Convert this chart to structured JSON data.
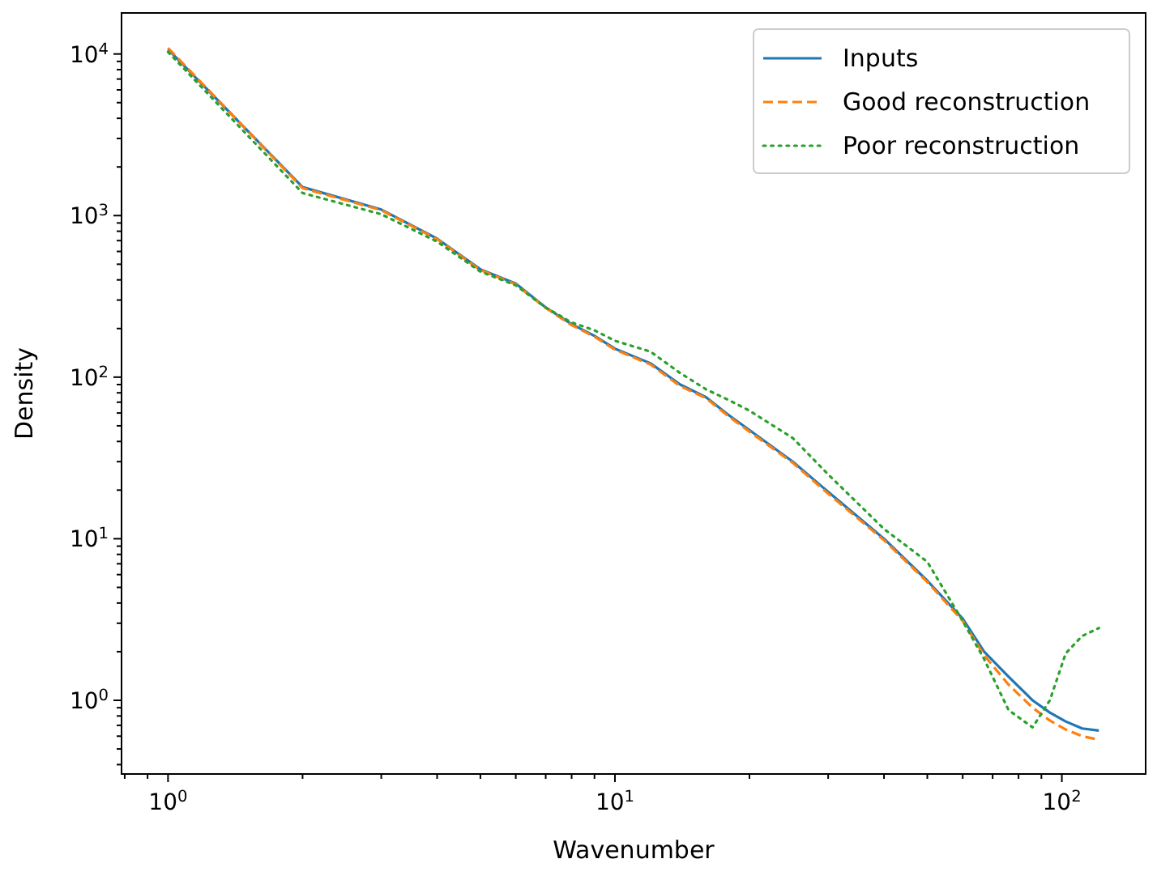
{
  "chart_data": {
    "type": "line",
    "xlabel": "Wavenumber",
    "ylabel": "Density",
    "log": "xy",
    "grid": false,
    "legend": "top right",
    "xlim": [
      0.787,
      154
    ],
    "ylim": [
      0.35,
      17950
    ],
    "xticks": [
      {
        "value": 0.8,
        "label": null
      },
      {
        "value": 0.9,
        "label": null
      },
      {
        "value": 1,
        "label": "10$^{0}$"
      },
      {
        "value": 2,
        "label": null
      },
      {
        "value": 3,
        "label": null
      },
      {
        "value": 4,
        "label": null
      },
      {
        "value": 5,
        "label": null
      },
      {
        "value": 6,
        "label": null
      },
      {
        "value": 7,
        "label": null
      },
      {
        "value": 8,
        "label": null
      },
      {
        "value": 9,
        "label": null
      },
      {
        "value": 10,
        "label": "10$^{1}$"
      },
      {
        "value": 20,
        "label": null
      },
      {
        "value": 30,
        "label": null
      },
      {
        "value": 40,
        "label": null
      },
      {
        "value": 50,
        "label": null
      },
      {
        "value": 60,
        "label": null
      },
      {
        "value": 70,
        "label": null
      },
      {
        "value": 80,
        "label": null
      },
      {
        "value": 90,
        "label": null
      },
      {
        "value": 100,
        "label": "10$^{2}$"
      }
    ],
    "yticks": [
      {
        "value": 0.4,
        "label": null
      },
      {
        "value": 0.5,
        "label": null
      },
      {
        "value": 0.6,
        "label": null
      },
      {
        "value": 0.7,
        "label": null
      },
      {
        "value": 0.8,
        "label": null
      },
      {
        "value": 0.9,
        "label": null
      },
      {
        "value": 1,
        "label": "10$^{0}$"
      },
      {
        "value": 2,
        "label": null
      },
      {
        "value": 3,
        "label": null
      },
      {
        "value": 4,
        "label": null
      },
      {
        "value": 5,
        "label": null
      },
      {
        "value": 6,
        "label": null
      },
      {
        "value": 7,
        "label": null
      },
      {
        "value": 8,
        "label": null
      },
      {
        "value": 9,
        "label": null
      },
      {
        "value": 10,
        "label": "10$^{1}$"
      },
      {
        "value": 20,
        "label": null
      },
      {
        "value": 30,
        "label": null
      },
      {
        "value": 40,
        "label": null
      },
      {
        "value": 50,
        "label": null
      },
      {
        "value": 60,
        "label": null
      },
      {
        "value": 70,
        "label": null
      },
      {
        "value": 80,
        "label": null
      },
      {
        "value": 90,
        "label": null
      },
      {
        "value": 100,
        "label": "10$^{2}$"
      },
      {
        "value": 200,
        "label": null
      },
      {
        "value": 300,
        "label": null
      },
      {
        "value": 400,
        "label": null
      },
      {
        "value": 500,
        "label": null
      },
      {
        "value": 600,
        "label": null
      },
      {
        "value": 700,
        "label": null
      },
      {
        "value": 800,
        "label": null
      },
      {
        "value": 900,
        "label": null
      },
      {
        "value": 1000,
        "label": "10$^{3}$"
      },
      {
        "value": 2000,
        "label": null
      },
      {
        "value": 3000,
        "label": null
      },
      {
        "value": 4000,
        "label": null
      },
      {
        "value": 5000,
        "label": null
      },
      {
        "value": 6000,
        "label": null
      },
      {
        "value": 7000,
        "label": null
      },
      {
        "value": 8000,
        "label": null
      },
      {
        "value": 9000,
        "label": null
      },
      {
        "value": 10000,
        "label": "10$^{4}$"
      }
    ],
    "x": [
      1,
      2,
      3,
      4,
      5,
      6,
      7,
      8,
      9,
      10,
      12,
      14,
      16,
      18,
      20,
      25,
      30,
      40,
      50,
      60,
      67,
      76,
      86,
      94,
      102,
      111,
      121
    ],
    "series": [
      {
        "name": "Inputs",
        "color": "#1f77b4",
        "line_style": "solid",
        "values": [
          10700,
          1500,
          1090,
          720,
          465,
          380,
          270,
          213,
          180,
          150,
          122,
          90,
          75,
          58,
          47,
          30,
          19.5,
          10,
          5.5,
          3.2,
          2.0,
          1.4,
          1.0,
          0.84,
          0.74,
          0.67,
          0.65
        ]
      },
      {
        "name": "Good reconstruction",
        "color": "#ff7f0e",
        "line_style": "dashed",
        "values": [
          10900,
          1480,
          1080,
          715,
          460,
          375,
          268,
          210,
          178,
          148,
          120,
          88,
          74,
          57,
          46,
          29.5,
          19,
          9.8,
          5.4,
          3.1,
          1.9,
          1.25,
          0.9,
          0.75,
          0.66,
          0.6,
          0.57
        ]
      },
      {
        "name": "Poor reconstruction",
        "color": "#2ca02c",
        "line_style": "dotted",
        "values": [
          10300,
          1380,
          1020,
          690,
          450,
          370,
          270,
          218,
          195,
          168,
          144,
          106,
          84,
          72,
          62,
          42,
          25,
          11.5,
          7.2,
          3.1,
          1.8,
          0.87,
          0.68,
          1.0,
          1.95,
          2.5,
          2.8
        ]
      }
    ]
  }
}
